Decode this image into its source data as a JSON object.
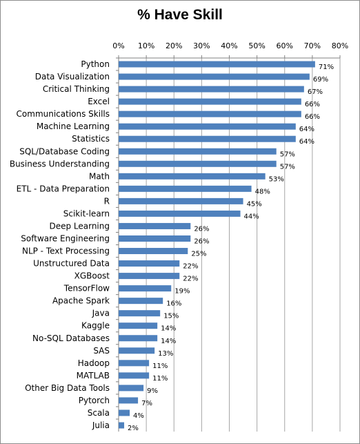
{
  "chart_data": {
    "type": "bar",
    "orientation": "horizontal",
    "title": "% Have Skill",
    "xlabel": "",
    "ylabel": "",
    "xlim": [
      0,
      80
    ],
    "x_ticks": [
      "0%",
      "10%",
      "20%",
      "30%",
      "40%",
      "50%",
      "60%",
      "70%",
      "80%"
    ],
    "x_axis_position": "top",
    "grid": "vertical gridlines",
    "bar_color": "#4f81bd",
    "categories": [
      "Python",
      "Data Visualization",
      "Critical Thinking",
      "Excel",
      "Communications Skills",
      "Machine Learning",
      "Statistics",
      "SQL/Database Coding",
      "Business Understanding",
      "Math",
      "ETL - Data Preparation",
      "R",
      "Scikit-learn",
      "Deep Learning",
      "Software Engineering",
      "NLP - Text Processing",
      "Unstructured Data",
      "XGBoost",
      "TensorFlow",
      "Apache Spark",
      "Java",
      "Kaggle",
      "No-SQL Databases",
      "SAS",
      "Hadoop",
      "MATLAB",
      "Other Big Data Tools",
      "Pytorch",
      "Scala",
      "Julia"
    ],
    "values": [
      71,
      69,
      67,
      66,
      66,
      64,
      64,
      57,
      57,
      53,
      48,
      45,
      44,
      26,
      26,
      25,
      22,
      22,
      19,
      16,
      15,
      14,
      14,
      13,
      11,
      11,
      9,
      7,
      4,
      2
    ],
    "value_labels": [
      "71%",
      "69%",
      "67%",
      "66%",
      "66%",
      "64%",
      "64%",
      "57%",
      "57%",
      "53%",
      "48%",
      "45%",
      "44%",
      "26%",
      "26%",
      "25%",
      "22%",
      "22%",
      "19%",
      "16%",
      "15%",
      "14%",
      "14%",
      "13%",
      "11%",
      "11%",
      "9%",
      "7%",
      "4%",
      "2%"
    ]
  }
}
